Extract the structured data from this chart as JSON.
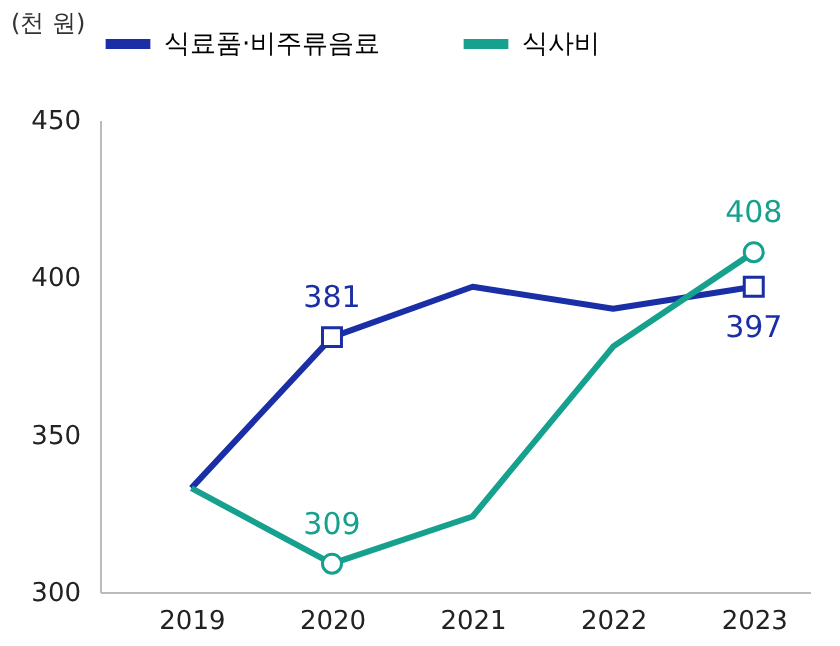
{
  "chart_data": {
    "type": "line",
    "ylabel": "(천 원)",
    "categories": [
      "2019",
      "2020",
      "2021",
      "2022",
      "2023"
    ],
    "series": [
      {
        "name": "식료품·비주류음료",
        "color": "#1a2ea6",
        "values": [
          333,
          381,
          397,
          390,
          397
        ],
        "value_labels": [
          null,
          "381",
          null,
          null,
          "397"
        ]
      },
      {
        "name": "식사비",
        "color": "#16a08e",
        "values": [
          333,
          309,
          324,
          378,
          408
        ],
        "value_labels": [
          null,
          "309",
          null,
          null,
          "408"
        ]
      }
    ],
    "ylim": [
      300,
      450
    ],
    "yticks": [
      300,
      350,
      400,
      450
    ],
    "grid": false,
    "legend": "top"
  }
}
